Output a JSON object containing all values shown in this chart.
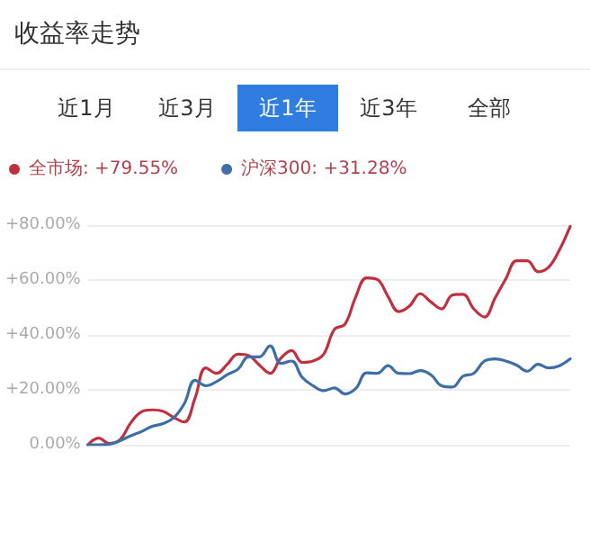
{
  "chart_data": {
    "type": "line",
    "title": "收益率走势",
    "annotations": [
      "近1月",
      "近3月",
      "近1年",
      "近3年",
      "全部"
    ],
    "categories": [
      null,
      null,
      null,
      null,
      null,
      null,
      null,
      null,
      null,
      null,
      null,
      null,
      null,
      null,
      null,
      null,
      null,
      null,
      null,
      null,
      null,
      null,
      null,
      null,
      null,
      null,
      null,
      null,
      null,
      null,
      null,
      null,
      null,
      null,
      null,
      null,
      null,
      null,
      null,
      null,
      null,
      null,
      null,
      null,
      null,
      null
    ],
    "series": [
      {
        "name": "全市场: +79.55%",
        "color": "#c0313f",
        "values": [
          0,
          2.4,
          0.5,
          1.8,
          8,
          12,
          12.7,
          12.2,
          10,
          8.3,
          17,
          28,
          26,
          29.3,
          33,
          32.5,
          29,
          26,
          31.5,
          34.3,
          30,
          30.5,
          33,
          42,
          44,
          54,
          60.8,
          60.2,
          54,
          48.5,
          50.5,
          55,
          52,
          49.5,
          54.5,
          54.8,
          49.5,
          46.5,
          53.5,
          60.5,
          67,
          67,
          63,
          64.7,
          71,
          79.55
        ]
      },
      {
        "name": "沪深300: +31.28%",
        "color": "#3d6ea8",
        "values": [
          0,
          0,
          0.2,
          1.5,
          3.3,
          4.8,
          6.7,
          7.7,
          9.8,
          15,
          23.5,
          21.5,
          23,
          25.5,
          27.5,
          32,
          32,
          36,
          29.6,
          30.5,
          24.5,
          21.5,
          19.7,
          20.7,
          18.5,
          20.5,
          26.2,
          26,
          28.8,
          26,
          25.9,
          27,
          25.5,
          21.5,
          21,
          25,
          26,
          30.5,
          31.3,
          30.5,
          29,
          26.8,
          29.3,
          28,
          28.8,
          31.28
        ]
      }
    ],
    "ylim": [
      0,
      80
    ],
    "yticks": [
      {
        "value": 0,
        "label": "0.00%"
      },
      {
        "value": 20,
        "label": "+20.00%"
      },
      {
        "value": 40,
        "label": "+40.00%"
      },
      {
        "value": 60,
        "label": "+60.00%"
      },
      {
        "value": 80,
        "label": "+80.00%"
      }
    ],
    "grid": "y",
    "legend": "top left",
    "marker": "none",
    "line_style": "solid"
  }
}
